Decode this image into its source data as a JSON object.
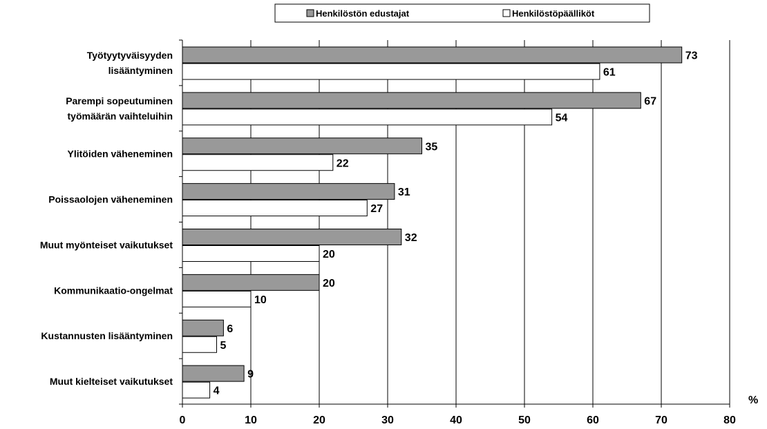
{
  "chart_data": {
    "type": "bar",
    "orientation": "horizontal",
    "categories": [
      [
        "Työtyytyväisyyden",
        "lisääntyminen"
      ],
      [
        "Parempi sopeutuminen",
        "työmäärän vaihteluihin"
      ],
      [
        "Ylitöiden väheneminen"
      ],
      [
        "Poissaolojen väheneminen"
      ],
      [
        "Muut myönteiset vaikutukset"
      ],
      [
        "Kommunikaatio-ongelmat"
      ],
      [
        "Kustannusten lisääntyminen"
      ],
      [
        "Muut kielteiset vaikutukset"
      ]
    ],
    "series": [
      {
        "name": "Henkilöstön edustajat",
        "color": "#999999",
        "values": [
          73,
          67,
          35,
          31,
          32,
          20,
          6,
          9
        ]
      },
      {
        "name": "Henkilöstöpäälliköt",
        "color": "#ffffff",
        "values": [
          61,
          54,
          22,
          27,
          20,
          10,
          5,
          4
        ]
      }
    ],
    "xlim": [
      0,
      80
    ],
    "xticks": [
      0,
      10,
      20,
      30,
      40,
      50,
      60,
      70,
      80
    ],
    "xunit": "%",
    "grid": "vertical",
    "legend": "top",
    "data_labels": true
  }
}
